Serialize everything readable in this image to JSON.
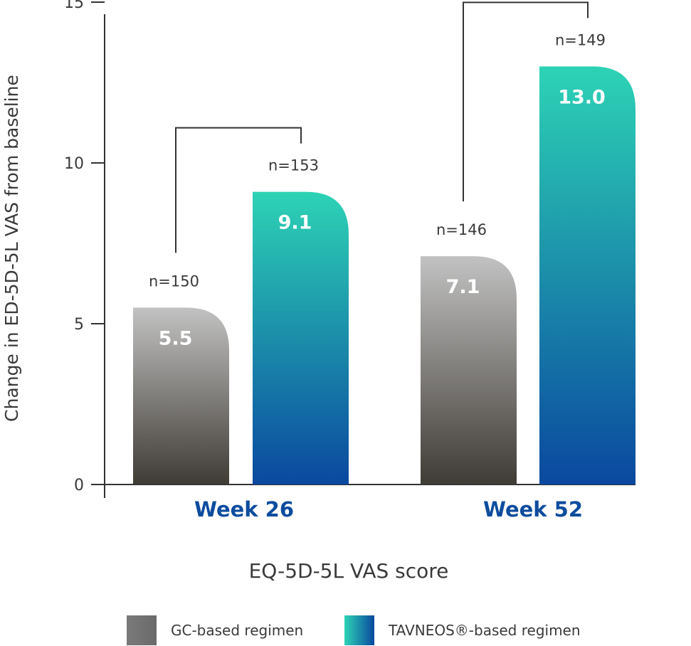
{
  "chart_data": {
    "type": "bar",
    "categories": [
      "Week 26",
      "Week 52"
    ],
    "series": [
      {
        "name": "GC-based regimen",
        "values": [
          5.5,
          7.1
        ],
        "n_labels": [
          "n=150",
          "n=146"
        ],
        "value_labels": [
          "5.5",
          "7.1"
        ]
      },
      {
        "name": "TAVNEOS®-based regimen",
        "values": [
          9.1,
          13.0
        ],
        "n_labels": [
          "n=153",
          "n=149"
        ],
        "value_labels": [
          "9.1",
          "13.0"
        ]
      }
    ],
    "xlabel": "EQ-5D-5L VAS score",
    "ylabel": "Change in ED-5D-5L VAS from baseline",
    "ylim": [
      0,
      15
    ],
    "yticks": [
      0,
      5,
      10,
      15
    ],
    "ytick_labels": [
      "0",
      "5",
      "10",
      "15"
    ],
    "legend": {
      "position": "bottom",
      "items": [
        "GC-based regimen",
        "TAVNEOS®-based regimen"
      ]
    },
    "grid": false,
    "colors": {
      "category_label": "#0d4c9e",
      "axis": "#333333",
      "gc_top": "#c2c2c2",
      "gc_bottom": "#3f3b35",
      "tav_top": "#2dd3b5",
      "tav_bottom": "#0a489f"
    }
  }
}
